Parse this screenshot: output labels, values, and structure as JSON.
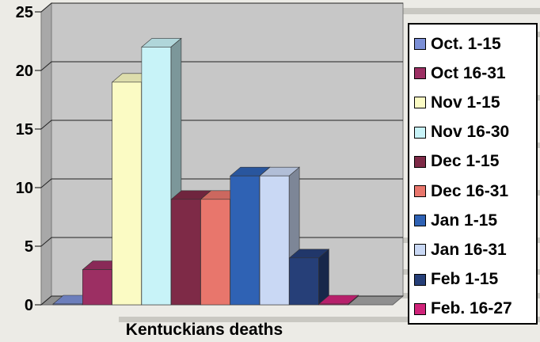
{
  "chart_data": {
    "type": "bar",
    "title": "",
    "xlabel": "Kentuckians deaths",
    "ylabel": "",
    "ylim": [
      0,
      25
    ],
    "yticks": [
      "0",
      "5",
      "10",
      "15",
      "20",
      "25"
    ],
    "grid": true,
    "three_d": true,
    "legend_position": "right",
    "series": [
      {
        "name": "Oct. 1-15",
        "value": 0,
        "color": "#7b8fd6"
      },
      {
        "name": "Oct 16-31",
        "value": 3,
        "color": "#9c2f63"
      },
      {
        "name": "Nov 1-15",
        "value": 19,
        "color": "#fbfbc4"
      },
      {
        "name": "Nov 16-30",
        "value": 22,
        "color": "#c8f3f8"
      },
      {
        "name": "Dec 1-15",
        "value": 9,
        "color": "#7e2a47"
      },
      {
        "name": "Dec 16-31",
        "value": 9,
        "color": "#e8766c"
      },
      {
        "name": "Jan 1-15",
        "value": 11,
        "color": "#2f62b4"
      },
      {
        "name": "Jan 16-31",
        "value": 11,
        "color": "#c9d8f4"
      },
      {
        "name": "Feb 1-15",
        "value": 4,
        "color": "#263f78"
      },
      {
        "name": "Feb. 16-27",
        "value": 0,
        "color": "#d0247a"
      }
    ]
  }
}
